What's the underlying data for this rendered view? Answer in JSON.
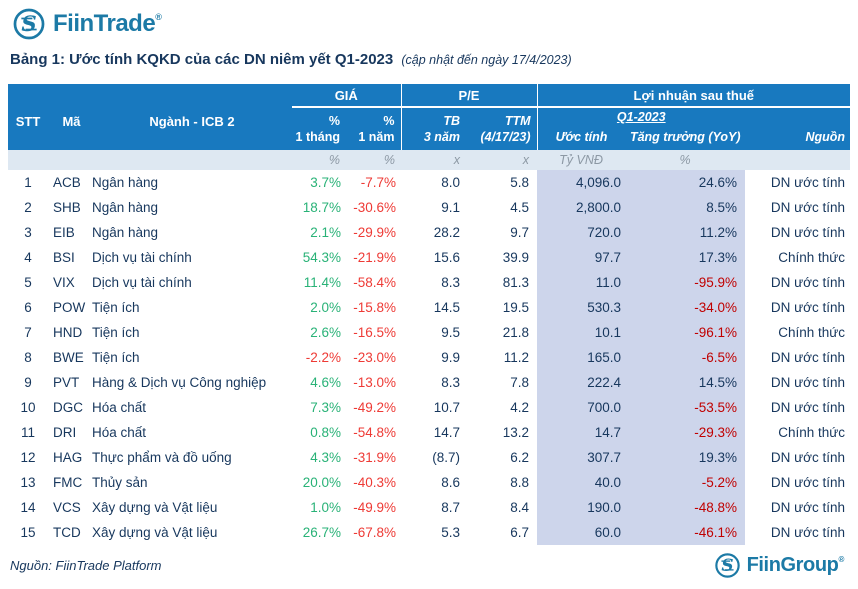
{
  "brand": {
    "top_logo": {
      "text": "FiinTrade",
      "reg": "®"
    },
    "bottom_logo": {
      "text": "FiinGroup",
      "reg": "®"
    }
  },
  "title": {
    "main": "Bảng 1: Ước tính KQKD của các DN niêm yết Q1-2023",
    "note": "(cập nhật đến ngày 17/4/2023)"
  },
  "table": {
    "header": {
      "stt": "STT",
      "ma": "Mã",
      "nganh": "Ngành - ICB 2",
      "gia": "GIÁ",
      "pe": "P/E",
      "lnst": "Lợi nhuận sau thuế",
      "gia_m1": [
        "%",
        "1 tháng"
      ],
      "gia_y1": [
        "%",
        "1 năm"
      ],
      "pe_tb": [
        "TB",
        "3 năm"
      ],
      "pe_ttm": [
        "TTM",
        "(4/17/23)"
      ],
      "q1": "Q1-2023",
      "uoc_tinh": "Ước tính",
      "tang_truong": "Tăng trưởng (YoY)",
      "nguon": "Nguồn"
    },
    "units": {
      "gia_m1": "%",
      "gia_y1": "%",
      "pe_tb": "x",
      "pe_ttm": "x",
      "uoc_tinh": "Tỷ VNĐ",
      "tang_truong": "%"
    },
    "rows": [
      {
        "stt": "1",
        "ma": "ACB",
        "nganh": "Ngân hàng",
        "m1": "3.7%",
        "y1": "-7.7%",
        "pe3": "8.0",
        "ttm": "5.8",
        "est": "4,096.0",
        "yoy": "24.6%",
        "src": "DN ước tính"
      },
      {
        "stt": "2",
        "ma": "SHB",
        "nganh": "Ngân hàng",
        "m1": "18.7%",
        "y1": "-30.6%",
        "pe3": "9.1",
        "ttm": "4.5",
        "est": "2,800.0",
        "yoy": "8.5%",
        "src": "DN ước tính"
      },
      {
        "stt": "3",
        "ma": "EIB",
        "nganh": "Ngân hàng",
        "m1": "2.1%",
        "y1": "-29.9%",
        "pe3": "28.2",
        "ttm": "9.7",
        "est": "720.0",
        "yoy": "11.2%",
        "src": "DN ước tính"
      },
      {
        "stt": "4",
        "ma": "BSI",
        "nganh": "Dịch vụ tài chính",
        "m1": "54.3%",
        "y1": "-21.9%",
        "pe3": "15.6",
        "ttm": "39.9",
        "est": "97.7",
        "yoy": "17.3%",
        "src": "Chính thức"
      },
      {
        "stt": "5",
        "ma": "VIX",
        "nganh": "Dịch vụ tài chính",
        "m1": "11.4%",
        "y1": "-58.4%",
        "pe3": "8.3",
        "ttm": "81.3",
        "est": "11.0",
        "yoy": "-95.9%",
        "src": "DN ước tính"
      },
      {
        "stt": "6",
        "ma": "POW",
        "nganh": "Tiện ích",
        "m1": "2.0%",
        "y1": "-15.8%",
        "pe3": "14.5",
        "ttm": "19.5",
        "est": "530.3",
        "yoy": "-34.0%",
        "src": "DN ước tính"
      },
      {
        "stt": "7",
        "ma": "HND",
        "nganh": "Tiện ích",
        "m1": "2.6%",
        "y1": "-16.5%",
        "pe3": "9.5",
        "ttm": "21.8",
        "est": "10.1",
        "yoy": "-96.1%",
        "src": "Chính thức"
      },
      {
        "stt": "8",
        "ma": "BWE",
        "nganh": "Tiện ích",
        "m1": "-2.2%",
        "y1": "-23.0%",
        "pe3": "9.9",
        "ttm": "11.2",
        "est": "165.0",
        "yoy": "-6.5%",
        "src": "DN ước tính"
      },
      {
        "stt": "9",
        "ma": "PVT",
        "nganh": "Hàng & Dịch vụ Công nghiệp",
        "m1": "4.6%",
        "y1": "-13.0%",
        "pe3": "8.3",
        "ttm": "7.8",
        "est": "222.4",
        "yoy": "14.5%",
        "src": "DN ước tính"
      },
      {
        "stt": "10",
        "ma": "DGC",
        "nganh": "Hóa chất",
        "m1": "7.3%",
        "y1": "-49.2%",
        "pe3": "10.7",
        "ttm": "4.2",
        "est": "700.0",
        "yoy": "-53.5%",
        "src": "DN ước tính"
      },
      {
        "stt": "11",
        "ma": "DRI",
        "nganh": "Hóa chất",
        "m1": "0.8%",
        "y1": "-54.8%",
        "pe3": "14.7",
        "ttm": "13.2",
        "est": "14.7",
        "yoy": "-29.3%",
        "src": "Chính thức"
      },
      {
        "stt": "12",
        "ma": "HAG",
        "nganh": "Thực phẩm và đồ uống",
        "m1": "4.3%",
        "y1": "-31.9%",
        "pe3": "(8.7)",
        "ttm": "6.2",
        "est": "307.7",
        "yoy": "19.3%",
        "src": "DN ước tính"
      },
      {
        "stt": "13",
        "ma": "FMC",
        "nganh": "Thủy sản",
        "m1": "20.0%",
        "y1": "-40.3%",
        "pe3": "8.6",
        "ttm": "8.8",
        "est": "40.0",
        "yoy": "-5.2%",
        "src": "DN ước tính"
      },
      {
        "stt": "14",
        "ma": "VCS",
        "nganh": "Xây dựng và Vật liệu",
        "m1": "1.0%",
        "y1": "-49.9%",
        "pe3": "8.7",
        "ttm": "8.4",
        "est": "190.0",
        "yoy": "-48.8%",
        "src": "DN ước tính"
      },
      {
        "stt": "15",
        "ma": "TCD",
        "nganh": "Xây dựng và Vật liệu",
        "m1": "26.7%",
        "y1": "-67.8%",
        "pe3": "5.3",
        "ttm": "6.7",
        "est": "60.0",
        "yoy": "-46.1%",
        "src": "DN ước tính"
      }
    ]
  },
  "source_note": "Nguồn: FiinTrade Platform",
  "colors": {
    "header_blue": "#1879BF",
    "navy_text": "#17375D",
    "positive_green": "#29B277",
    "negative_red": "#EE3A35",
    "yoy_negative_red": "#C00000",
    "unit_row_bg": "#DEE8F2",
    "highlight_bg": "#CDD5EB",
    "logo_blue": "#1C7AA6"
  }
}
